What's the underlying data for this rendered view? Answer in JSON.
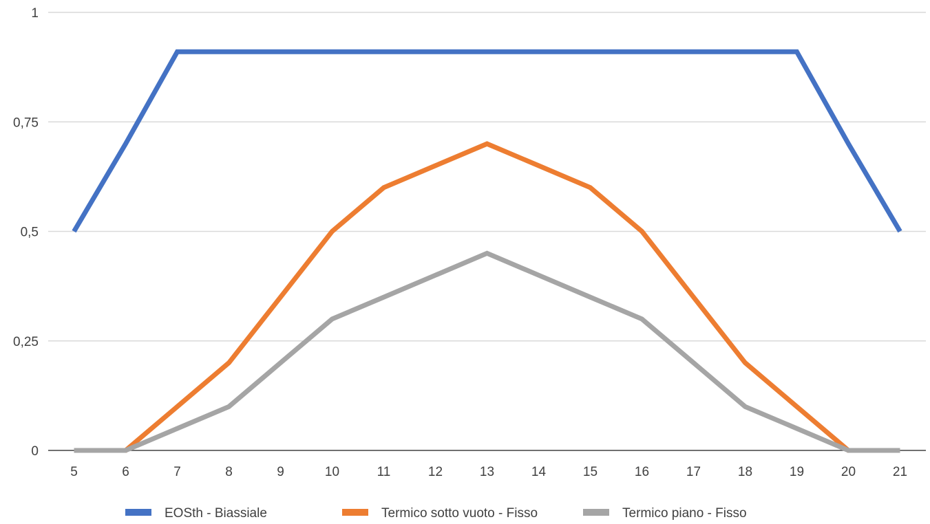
{
  "chart_data": {
    "type": "line",
    "x": [
      "5",
      "6",
      "7",
      "8",
      "9",
      "10",
      "11",
      "12",
      "13",
      "14",
      "15",
      "16",
      "17",
      "18",
      "19",
      "20",
      "21"
    ],
    "ylim": [
      0,
      1
    ],
    "yticks": [
      {
        "value": 0,
        "label": "0"
      },
      {
        "value": 0.25,
        "label": "0,25"
      },
      {
        "value": 0.5,
        "label": "0,5"
      },
      {
        "value": 0.75,
        "label": "0,75"
      },
      {
        "value": 1,
        "label": "1"
      }
    ],
    "grid": true,
    "legend_position": "bottom",
    "series": [
      {
        "name": "EOSth - Biassiale",
        "color": "#4472C4",
        "values": [
          0.5,
          0.7,
          0.91,
          0.91,
          0.91,
          0.91,
          0.91,
          0.91,
          0.91,
          0.91,
          0.91,
          0.91,
          0.91,
          0.91,
          0.91,
          0.7,
          0.5
        ]
      },
      {
        "name": "Termico sotto vuoto - Fisso",
        "color": "#ED7D31",
        "values": [
          0,
          0,
          0.1,
          0.2,
          0.35,
          0.5,
          0.6,
          0.65,
          0.7,
          0.65,
          0.6,
          0.5,
          0.35,
          0.2,
          0.1,
          0,
          0
        ]
      },
      {
        "name": "Termico piano - Fisso",
        "color": "#A5A5A5",
        "values": [
          0,
          0,
          0.05,
          0.1,
          0.2,
          0.3,
          0.35,
          0.4,
          0.45,
          0.4,
          0.35,
          0.3,
          0.2,
          0.1,
          0.05,
          0,
          0
        ]
      }
    ]
  }
}
